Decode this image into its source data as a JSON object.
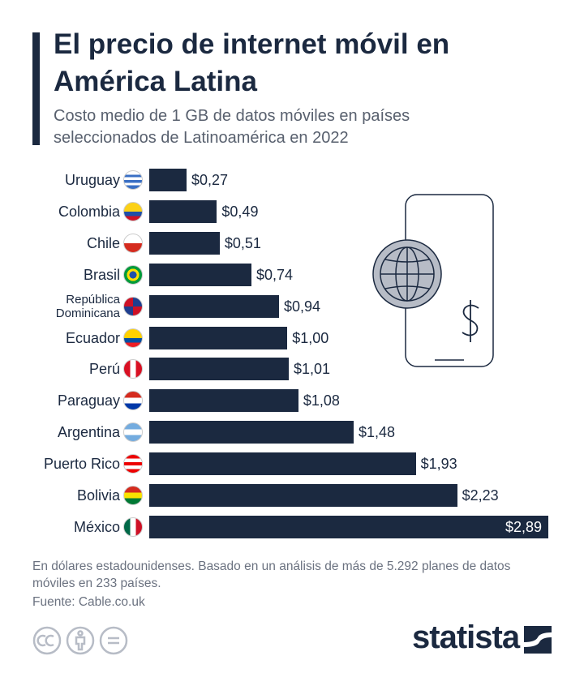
{
  "chart_data": {
    "type": "bar",
    "orientation": "horizontal",
    "title": "El precio de internet móvil en América Latina",
    "subtitle": "Costo medio de 1 GB de datos móviles en países seleccionados de Latinoamérica en 2022",
    "categories": [
      "Uruguay",
      "Colombia",
      "Chile",
      "Brasil",
      "República Dominicana",
      "Ecuador",
      "Perú",
      "Paraguay",
      "Argentina",
      "Puerto Rico",
      "Bolivia",
      "México"
    ],
    "values": [
      0.27,
      0.49,
      0.51,
      0.74,
      0.94,
      1.0,
      1.01,
      1.08,
      1.48,
      1.93,
      2.23,
      2.89
    ],
    "value_labels": [
      "$0,27",
      "$0,49",
      "$0,51",
      "$0,74",
      "$0,94",
      "$1,00",
      "$1,01",
      "$1,08",
      "$1,48",
      "$1,93",
      "$2,23",
      "$2,89"
    ],
    "color": "#1b2940",
    "note": "En dólares estadounidenses. Basado en un análisis de más de 5.292 planes de datos móviles en 233 países.",
    "source": "Fuente: Cable.co.uk",
    "logo": "statista"
  }
}
